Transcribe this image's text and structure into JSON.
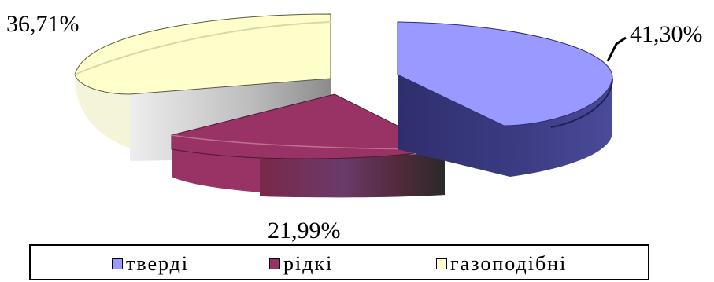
{
  "chart_data": {
    "type": "pie",
    "style": "3d-exploded",
    "categories": [
      "тверді",
      "рідкі",
      "газоподібні"
    ],
    "values": [
      41.3,
      21.99,
      36.71
    ],
    "labels": [
      "41,30%",
      "21,99%",
      "36,71%"
    ],
    "title": "",
    "legend_position": "bottom"
  },
  "colors": {
    "solid": "#9999ff",
    "liquid": "#993366",
    "gas": "#ffffcc"
  }
}
